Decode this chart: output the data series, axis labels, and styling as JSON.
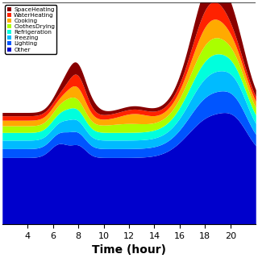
{
  "xlabel": "Time (hour)",
  "xticks": [
    4,
    6,
    8,
    10,
    12,
    14,
    16,
    18,
    20
  ],
  "xlim": [
    2,
    22
  ],
  "ylim": [
    0,
    1.0
  ],
  "colors": [
    "#0000cc",
    "#0055ff",
    "#00bbff",
    "#00ffdd",
    "#aaff00",
    "#ffaa00",
    "#ff2200",
    "#880000"
  ],
  "legend_labels": [
    "SpaceHeating",
    "WaterHeating",
    "Cooking",
    "ClothesDrying",
    "Refrigeration",
    "Freezing",
    "Lighting",
    "Other"
  ]
}
